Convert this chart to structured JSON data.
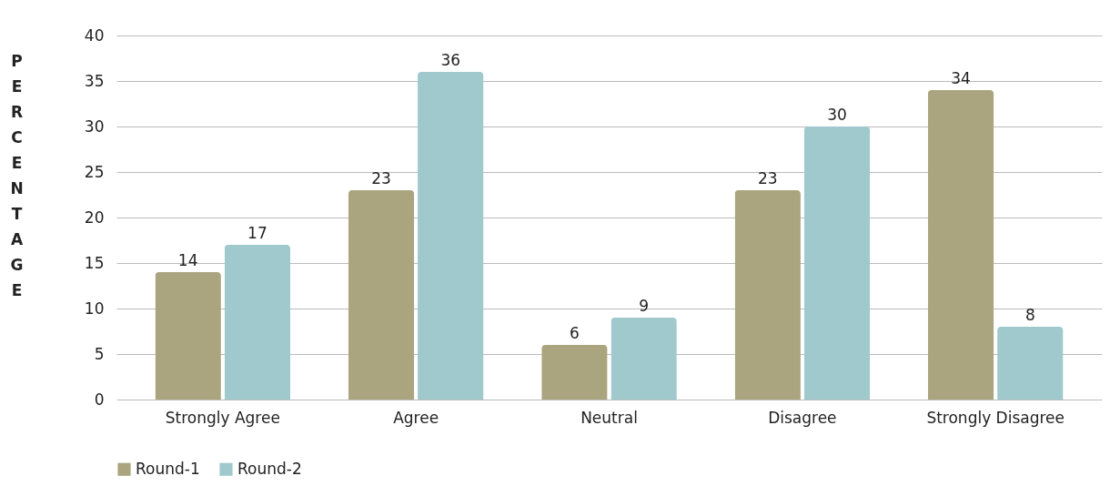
{
  "chart_data": {
    "type": "bar",
    "ylabel": "PERCENTAGE",
    "categories": [
      "Strongly Agree",
      "Agree",
      "Neutral",
      "Disagree",
      "Strongly Disagree"
    ],
    "series": [
      {
        "name": "Round-1",
        "color": "#aaa57f",
        "values": [
          14,
          23,
          6,
          23,
          34
        ]
      },
      {
        "name": "Round-2",
        "color": "#9fc9cc",
        "values": [
          17,
          36,
          9,
          30,
          8
        ]
      }
    ],
    "ylim": [
      0,
      40
    ],
    "yticks": [
      0,
      5,
      10,
      15,
      20,
      25,
      30,
      35,
      40
    ],
    "grid": "y",
    "legend": "bottom",
    "data_labels": true
  }
}
